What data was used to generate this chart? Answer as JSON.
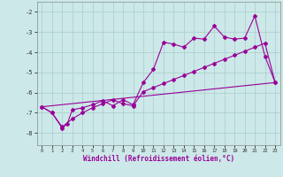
{
  "xlabel": "Windchill (Refroidissement éolien,°C)",
  "xlim": [
    -0.5,
    23.5
  ],
  "ylim": [
    -8.6,
    -1.5
  ],
  "yticks": [
    -8,
    -7,
    -6,
    -5,
    -4,
    -3,
    -2
  ],
  "xticks": [
    0,
    1,
    2,
    3,
    4,
    5,
    6,
    7,
    8,
    9,
    10,
    11,
    12,
    13,
    14,
    15,
    16,
    17,
    18,
    19,
    20,
    21,
    22,
    23
  ],
  "bg_color": "#cce8e8",
  "grid_color": "#aacccc",
  "line_color": "#990099",
  "line1_x": [
    0,
    1,
    2,
    3,
    4,
    5,
    6,
    7,
    8,
    9,
    10,
    11,
    12,
    13,
    14,
    15,
    16,
    17,
    18,
    19,
    20,
    21,
    22,
    23
  ],
  "line1_y": [
    -6.7,
    -7.0,
    -7.7,
    -7.3,
    -7.0,
    -6.75,
    -6.55,
    -6.35,
    -6.55,
    -6.65,
    -5.95,
    -5.75,
    -5.55,
    -5.35,
    -5.15,
    -4.95,
    -4.75,
    -4.55,
    -4.35,
    -4.15,
    -3.95,
    -3.75,
    -3.55,
    -5.5
  ],
  "line2_x": [
    0,
    1,
    2,
    2.5,
    3,
    4,
    5,
    6,
    7,
    8,
    9,
    10,
    11,
    12,
    13,
    14,
    15,
    16,
    17,
    18,
    19,
    20,
    21,
    22,
    23
  ],
  "line2_y": [
    -6.7,
    -7.0,
    -7.75,
    -7.55,
    -6.85,
    -6.75,
    -6.6,
    -6.4,
    -6.65,
    -6.35,
    -6.6,
    -5.5,
    -4.85,
    -3.5,
    -3.6,
    -3.75,
    -3.3,
    -3.35,
    -2.7,
    -3.25,
    -3.35,
    -3.3,
    -2.2,
    -4.2,
    -5.5
  ],
  "line3_x": [
    0,
    23
  ],
  "line3_y": [
    -6.7,
    -5.5
  ]
}
